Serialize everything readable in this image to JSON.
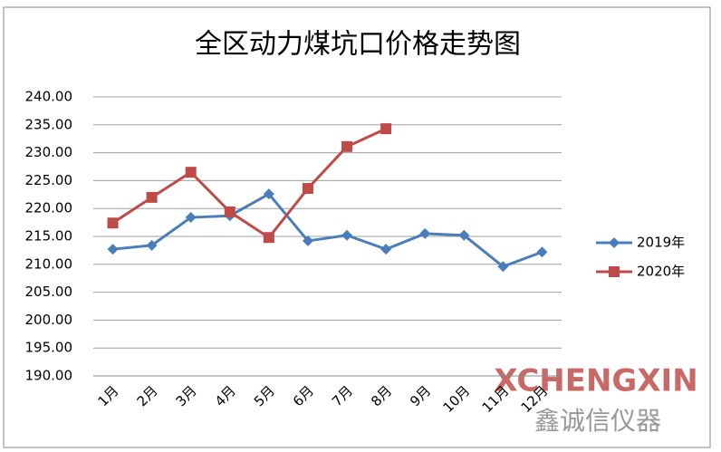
{
  "chart_data": {
    "type": "line",
    "title": "全区动力煤坑口价格走势图",
    "categories": [
      "1月",
      "2月",
      "3月",
      "4月",
      "5月",
      "6月",
      "7月",
      "8月",
      "9月",
      "10月",
      "11月",
      "12月"
    ],
    "series": [
      {
        "name": "2019年",
        "color": "#4a7ebb",
        "marker": "diamond",
        "values": [
          212.7,
          213.4,
          218.4,
          218.7,
          222.6,
          214.2,
          215.2,
          212.7,
          215.5,
          215.2,
          209.6,
          212.2
        ]
      },
      {
        "name": "2020年",
        "color": "#be4b48",
        "marker": "square",
        "values": [
          217.4,
          222.0,
          226.5,
          219.4,
          214.8,
          223.6,
          231.1,
          234.3,
          null,
          null,
          null,
          null
        ]
      }
    ],
    "ylim": [
      190,
      240
    ],
    "yticks": [
      {
        "value": 190,
        "label": "190.00"
      },
      {
        "value": 195,
        "label": "195.00"
      },
      {
        "value": 200,
        "label": "200.00"
      },
      {
        "value": 205,
        "label": "205.00"
      },
      {
        "value": 210,
        "label": "210.00"
      },
      {
        "value": 215,
        "label": "215.00"
      },
      {
        "value": 220,
        "label": "220.00"
      },
      {
        "value": 225,
        "label": "225.00"
      },
      {
        "value": 230,
        "label": "230.00"
      },
      {
        "value": 235,
        "label": "235.00"
      },
      {
        "value": 240,
        "label": "240.00"
      }
    ],
    "grid": true,
    "legend": "right",
    "watermark": [
      "XCHENGXIN",
      "鑫诚信仪器"
    ]
  }
}
